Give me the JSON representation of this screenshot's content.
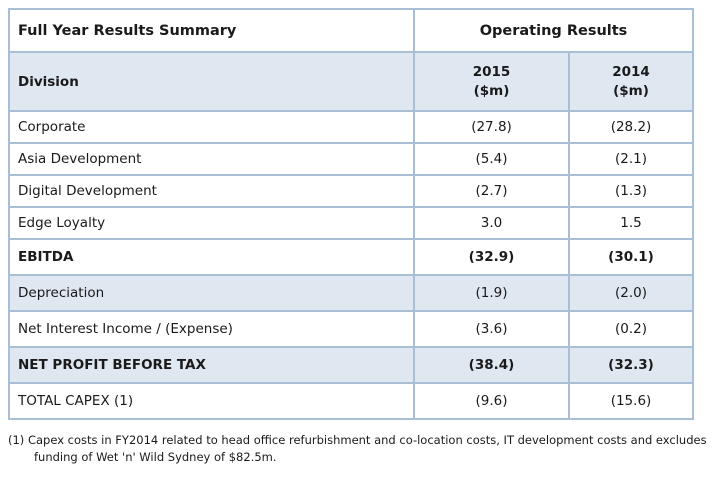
{
  "table": {
    "title": "Full Year Results Summary",
    "operating_header": "Operating Results",
    "division_label": "Division",
    "col_2015_year": "2015",
    "col_2015_unit": "($m)",
    "col_2014_year": "2014",
    "col_2014_unit": "($m)",
    "rows": [
      {
        "label": "Corporate",
        "v2015": "(27.8)",
        "v2014": "(28.2)"
      },
      {
        "label": "Asia Development",
        "v2015": "(5.4)",
        "v2014": "(2.1)"
      },
      {
        "label": "Digital Development",
        "v2015": "(2.7)",
        "v2014": "(1.3)"
      },
      {
        "label": "Edge Loyalty",
        "v2015": "3.0",
        "v2014": "1.5"
      },
      {
        "label": "EBITDA",
        "v2015": "(32.9)",
        "v2014": "(30.1)"
      },
      {
        "label": "Depreciation",
        "v2015": "(1.9)",
        "v2014": "(2.0)"
      },
      {
        "label": "Net Interest Income / (Expense)",
        "v2015": "(3.6)",
        "v2014": "(0.2)"
      },
      {
        "label": "NET PROFIT BEFORE TAX",
        "v2015": "(38.4)",
        "v2014": "(32.3)"
      },
      {
        "label": "TOTAL CAPEX (1)",
        "v2015": "(9.6)",
        "v2014": "(15.6)"
      }
    ]
  },
  "footnote": {
    "line1": "(1) Capex costs in FY2014 related to head office refurbishment and co-location costs, IT development costs and excludes",
    "line2": "funding of Wet 'n' Wild Sydney of $82.5m."
  },
  "colors": {
    "border": "#a9bfd6",
    "shade": "#dfe7f1"
  }
}
